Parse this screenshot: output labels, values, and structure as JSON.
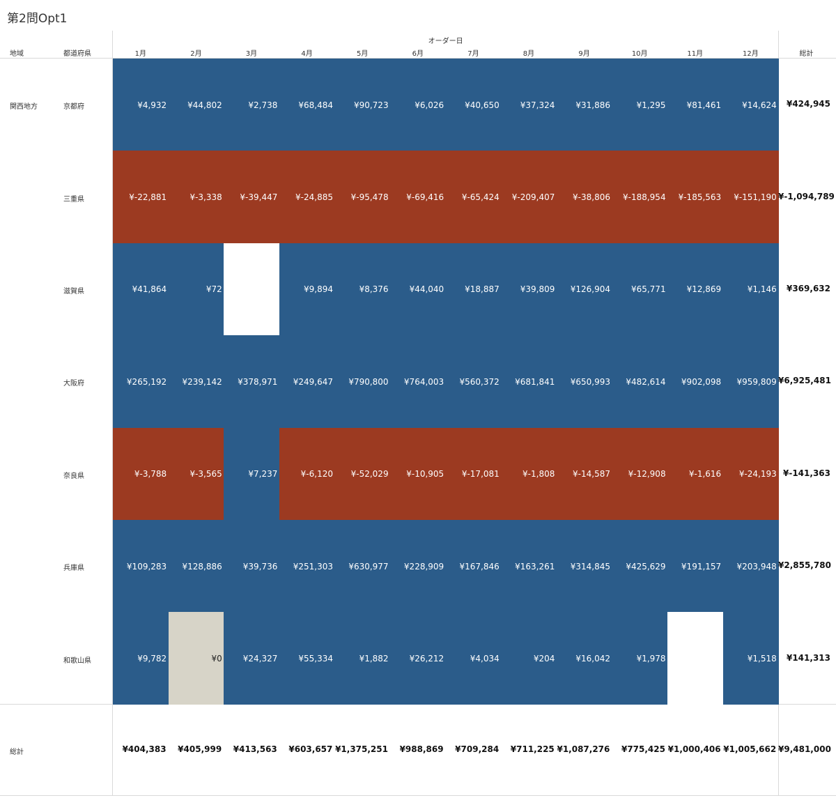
{
  "title": "第2問Opt1",
  "header": {
    "region_label": "地域",
    "prefecture_label": "都道府県",
    "date_label": "オーダー日",
    "total_label": "総計"
  },
  "colors": {
    "positive": "#2b5c8a",
    "negative": "#9c3a21",
    "zero": "#d7d4c8",
    "empty": "#ffffff"
  },
  "chart_data": {
    "type": "heatmap",
    "title": "第2問Opt1",
    "columns": [
      "1月",
      "2月",
      "3月",
      "4月",
      "5月",
      "6月",
      "7月",
      "8月",
      "9月",
      "10月",
      "11月",
      "12月"
    ],
    "region": "関西地方",
    "rows": [
      {
        "prefecture": "京都府",
        "values": [
          4932,
          44802,
          2738,
          68484,
          90723,
          6026,
          40650,
          37324,
          31886,
          1295,
          81461,
          14624
        ],
        "total": 424945,
        "labels": [
          "¥4,932",
          "¥44,802",
          "¥2,738",
          "¥68,484",
          "¥90,723",
          "¥6,026",
          "¥40,650",
          "¥37,324",
          "¥31,886",
          "¥1,295",
          "¥81,461",
          "¥14,624"
        ],
        "total_label": "¥424,945"
      },
      {
        "prefecture": "三重県",
        "values": [
          -22881,
          -3338,
          -39447,
          -24885,
          -95478,
          -69416,
          -65424,
          -209407,
          -38806,
          -188954,
          -185563,
          -151190
        ],
        "total": -1094789,
        "labels": [
          "¥-22,881",
          "¥-3,338",
          "¥-39,447",
          "¥-24,885",
          "¥-95,478",
          "¥-69,416",
          "¥-65,424",
          "¥-209,407",
          "¥-38,806",
          "¥-188,954",
          "¥-185,563",
          "¥-151,190"
        ],
        "total_label": "¥-1,094,789"
      },
      {
        "prefecture": "滋賀県",
        "values": [
          41864,
          72,
          null,
          9894,
          8376,
          44040,
          18887,
          39809,
          126904,
          65771,
          12869,
          1146
        ],
        "total": 369632,
        "labels": [
          "¥41,864",
          "¥72",
          "",
          "¥9,894",
          "¥8,376",
          "¥44,040",
          "¥18,887",
          "¥39,809",
          "¥126,904",
          "¥65,771",
          "¥12,869",
          "¥1,146"
        ],
        "total_label": "¥369,632"
      },
      {
        "prefecture": "大阪府",
        "values": [
          265192,
          239142,
          378971,
          249647,
          790800,
          764003,
          560372,
          681841,
          650993,
          482614,
          902098,
          959809
        ],
        "total": 6925481,
        "labels": [
          "¥265,192",
          "¥239,142",
          "¥378,971",
          "¥249,647",
          "¥790,800",
          "¥764,003",
          "¥560,372",
          "¥681,841",
          "¥650,993",
          "¥482,614",
          "¥902,098",
          "¥959,809"
        ],
        "total_label": "¥6,925,481"
      },
      {
        "prefecture": "奈良県",
        "values": [
          -3788,
          -3565,
          7237,
          -6120,
          -52029,
          -10905,
          -17081,
          -1808,
          -14587,
          -12908,
          -1616,
          -24193
        ],
        "total": -141363,
        "labels": [
          "¥-3,788",
          "¥-3,565",
          "¥7,237",
          "¥-6,120",
          "¥-52,029",
          "¥-10,905",
          "¥-17,081",
          "¥-1,808",
          "¥-14,587",
          "¥-12,908",
          "¥-1,616",
          "¥-24,193"
        ],
        "total_label": "¥-141,363"
      },
      {
        "prefecture": "兵庫県",
        "values": [
          109283,
          128886,
          39736,
          251303,
          630977,
          228909,
          167846,
          163261,
          314845,
          425629,
          191157,
          203948
        ],
        "total": 2855780,
        "labels": [
          "¥109,283",
          "¥128,886",
          "¥39,736",
          "¥251,303",
          "¥630,977",
          "¥228,909",
          "¥167,846",
          "¥163,261",
          "¥314,845",
          "¥425,629",
          "¥191,157",
          "¥203,948"
        ],
        "total_label": "¥2,855,780"
      },
      {
        "prefecture": "和歌山県",
        "values": [
          9782,
          0,
          24327,
          55334,
          1882,
          26212,
          4034,
          204,
          16042,
          1978,
          null,
          1518
        ],
        "total": 141313,
        "labels": [
          "¥9,782",
          "¥0",
          "¥24,327",
          "¥55,334",
          "¥1,882",
          "¥26,212",
          "¥4,034",
          "¥204",
          "¥16,042",
          "¥1,978",
          "",
          "¥1,518"
        ],
        "total_label": "¥141,313"
      }
    ],
    "grand_total_label": "総計",
    "column_totals": [
      404383,
      405999,
      413563,
      603657,
      1375251,
      988869,
      709284,
      711225,
      1087276,
      775425,
      1000406,
      1005662
    ],
    "column_total_labels": [
      "¥404,383",
      "¥405,999",
      "¥413,563",
      "¥603,657",
      "¥1,375,251",
      "¥988,869",
      "¥709,284",
      "¥711,225",
      "¥1,087,276",
      "¥775,425",
      "¥1,000,406",
      "¥1,005,662"
    ],
    "grand_total": 9481000,
    "grand_total_value_label": "¥9,481,000"
  }
}
